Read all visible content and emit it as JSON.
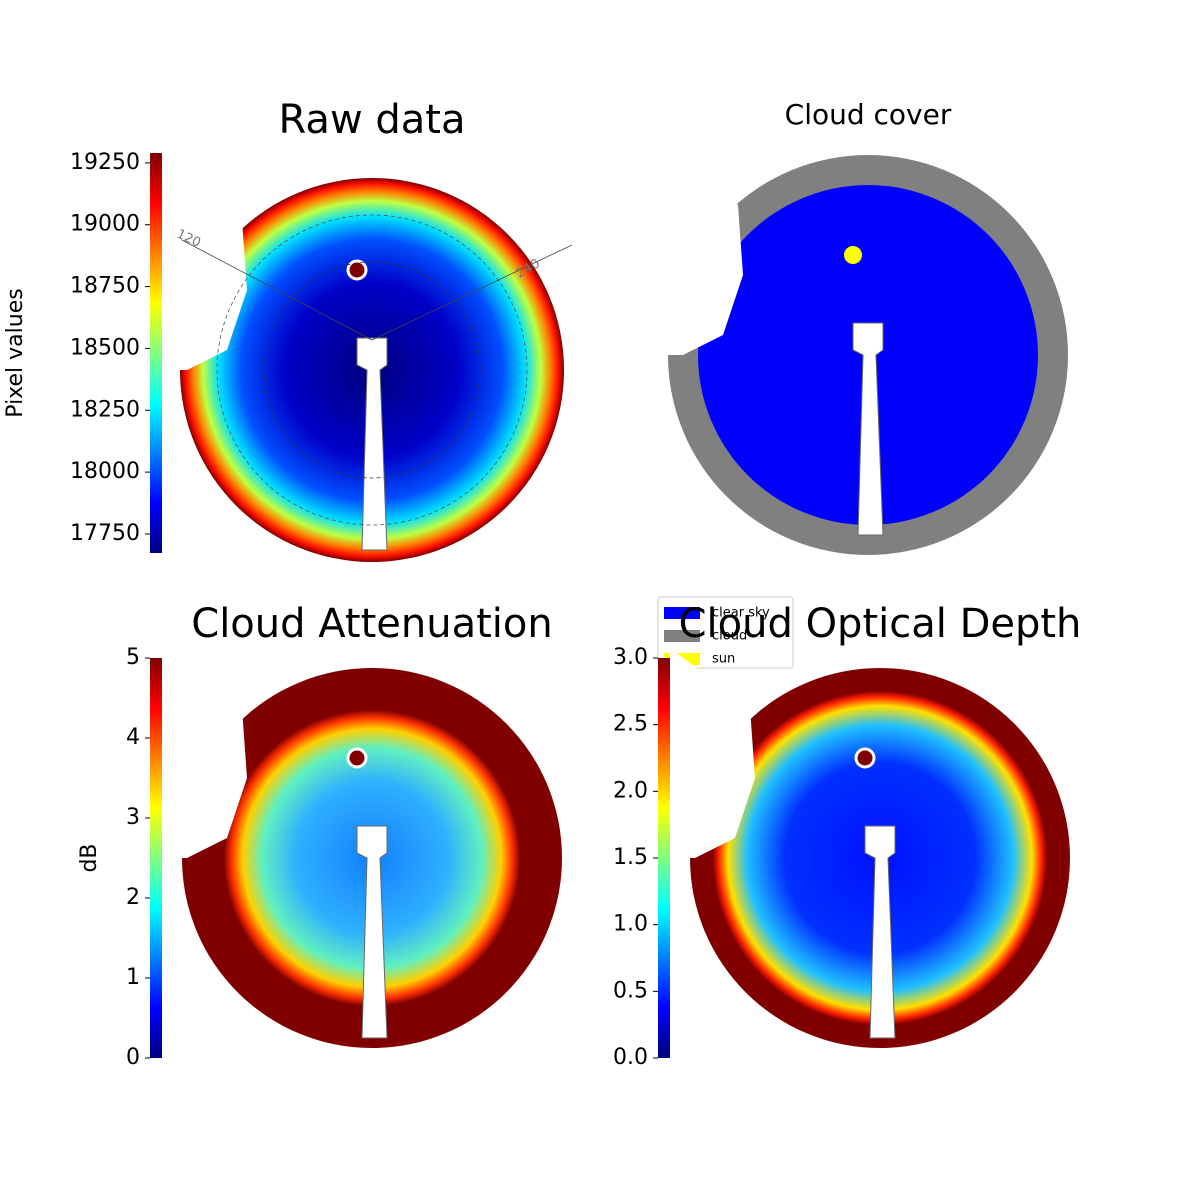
{
  "chart_data": [
    {
      "type": "image",
      "title": "Raw data",
      "colorbar_label": "Pixel values",
      "clim": [
        17673,
        19290
      ],
      "cticks": [
        17750,
        18000,
        18250,
        18500,
        18750,
        19000,
        19250
      ],
      "annotations": [
        "120",
        "240"
      ]
    },
    {
      "type": "image",
      "title": "Cloud cover",
      "series": [
        {
          "name": "clear sky",
          "color": "#0000ff"
        },
        {
          "name": "cloud",
          "color": "#808080"
        },
        {
          "name": "sun",
          "color": "#ffff00"
        }
      ],
      "legend": "lower right"
    },
    {
      "type": "image",
      "title": "Cloud Attenuation",
      "colorbar_label": "dB",
      "clim": [
        0,
        5
      ],
      "cticks": [
        0,
        1,
        2,
        3,
        4,
        5
      ]
    },
    {
      "type": "image",
      "title": "Cloud Optical Depth",
      "clim": [
        0,
        3
      ],
      "cticks": [
        {
          "value": 0,
          "label": "0.0"
        },
        {
          "value": 0.5,
          "label": "0.5"
        },
        {
          "value": 1,
          "label": "1.0"
        },
        {
          "value": 1.5,
          "label": "1.5"
        },
        {
          "value": 2,
          "label": "2.0"
        },
        {
          "value": 2.5,
          "label": "2.5"
        },
        {
          "value": 3,
          "label": "3.0"
        }
      ]
    }
  ]
}
